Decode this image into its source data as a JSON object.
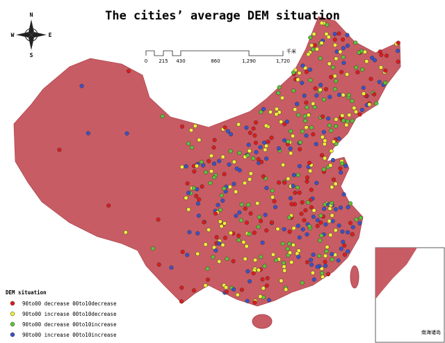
{
  "title": "The cities’ average DEM situation",
  "compass": {
    "n": "N",
    "s": "S",
    "w": "W",
    "e": "E"
  },
  "scale_bar": {
    "ticks": [
      "0",
      "215",
      "430",
      "860",
      "1,290",
      "1,720"
    ],
    "unit": "千米"
  },
  "legend": {
    "title": "DEM situation",
    "items": [
      {
        "label": "90to00 decrease 00to10decrease",
        "color": "#e01b1b"
      },
      {
        "label": "90to00 increase 00to10decrease",
        "color": "#f0ee3a"
      },
      {
        "label": "90to00 decrease 00to10increase",
        "color": "#5fc23a"
      },
      {
        "label": "90to00 increase 00to10increase",
        "color": "#3a52c8"
      }
    ]
  },
  "inset": {
    "label": "南海诸岛"
  }
}
